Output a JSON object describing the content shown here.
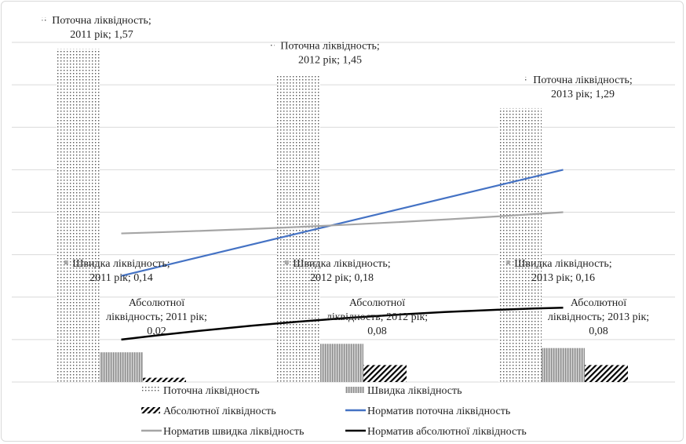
{
  "chart_data": {
    "type": "bar",
    "title": "",
    "xlabel": "",
    "ylabel": "",
    "ylim": [
      0,
      1.6
    ],
    "grid": true,
    "gridline_step": 0.2,
    "legend_position": "bottom",
    "categories": [
      "2011 рік",
      "2012 рік",
      "2013 рік"
    ],
    "bar_series": [
      {
        "name": "Поточна ліквідность",
        "values": [
          1.57,
          1.45,
          1.29
        ],
        "labels": [
          "Поточна ліквідность;|2011 рік; 1,57",
          "Поточна ліквідность;|2012 рік; 1,45",
          "Поточна ліквідность;|2013 рік; 1,29"
        ]
      },
      {
        "name": "Швидка ліквідность",
        "values": [
          0.14,
          0.18,
          0.16
        ],
        "labels": [
          "Швидка ліквідность;|2011 рік; 0,14",
          "Швидка ліквідность;|2012 рік; 0,18",
          "Швидка ліквідность;|2013 рік; 0,16"
        ]
      },
      {
        "name": "Абсолютної ліквідность",
        "values": [
          0.02,
          0.08,
          0.08
        ],
        "labels": [
          "Абсолютної|ліквідность; 2011 рік;|0,02",
          "Абсолютної|ліквідность; 2012 рік;|0,08",
          "Абсолютної|ліквідность; 2013 рік;|0,08"
        ]
      }
    ],
    "line_series": [
      {
        "name": "Норматив поточна ліквідность",
        "values": [
          0.5,
          0.75,
          1.0
        ],
        "color": "#4472c4"
      },
      {
        "name": "Норматив швидка ліквідность",
        "values": [
          0.7,
          0.74,
          0.8
        ],
        "color": "#a5a5a5"
      },
      {
        "name": "Норматив абсолютної ліквідность",
        "values": [
          0.2,
          0.3,
          0.35
        ],
        "color": "#000000"
      }
    ]
  }
}
